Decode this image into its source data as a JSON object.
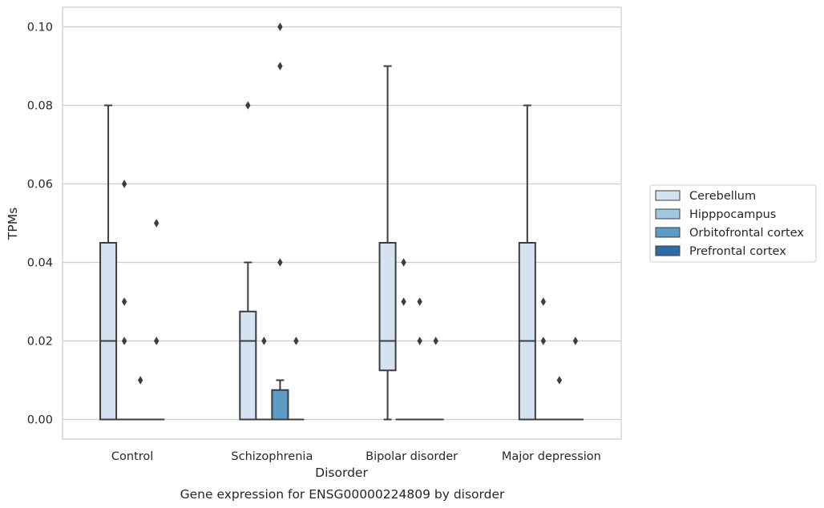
{
  "chart_data": {
    "type": "box",
    "title": "",
    "caption": "Gene expression for ENSG00000224809 by disorder",
    "xlabel": "Disorder",
    "ylabel": "TPMs",
    "ylim": [
      -0.005,
      0.105
    ],
    "yticks": [
      0.0,
      0.02,
      0.04,
      0.06,
      0.08,
      0.1
    ],
    "ytick_labels": [
      "0.00",
      "0.02",
      "0.04",
      "0.06",
      "0.08",
      "0.10"
    ],
    "grid": "horizontal",
    "legend_position": "right",
    "categories": [
      "Control",
      "Schizophrenia",
      "Bipolar disorder",
      "Major depression"
    ],
    "series": [
      {
        "name": "Cerebellum",
        "color": "#d4e2f1",
        "boxes": [
          {
            "whisker_low": 0.0,
            "q1": 0.0,
            "median": 0.02,
            "q3": 0.045,
            "whisker_high": 0.08,
            "outliers": []
          },
          {
            "whisker_low": 0.0,
            "q1": 0.0,
            "median": 0.02,
            "q3": 0.0275,
            "whisker_high": 0.04,
            "outliers": [
              0.08
            ]
          },
          {
            "whisker_low": 0.0,
            "q1": 0.0125,
            "median": 0.02,
            "q3": 0.045,
            "whisker_high": 0.09,
            "outliers": []
          },
          {
            "whisker_low": 0.0,
            "q1": 0.0,
            "median": 0.02,
            "q3": 0.045,
            "whisker_high": 0.08,
            "outliers": []
          }
        ]
      },
      {
        "name": "Hipppocampus",
        "color": "#a3c6df",
        "boxes": [
          {
            "whisker_low": 0.0,
            "q1": 0.0,
            "median": 0.0,
            "q3": 0.0,
            "whisker_high": 0.0,
            "outliers": [
              0.02,
              0.03,
              0.06
            ]
          },
          {
            "whisker_low": 0.0,
            "q1": 0.0,
            "median": 0.0,
            "q3": 0.0,
            "whisker_high": 0.0,
            "outliers": [
              0.02
            ]
          },
          {
            "whisker_low": 0.0,
            "q1": 0.0,
            "median": 0.0,
            "q3": 0.0,
            "whisker_high": 0.0,
            "outliers": [
              0.03,
              0.04
            ]
          },
          {
            "whisker_low": 0.0,
            "q1": 0.0,
            "median": 0.0,
            "q3": 0.0,
            "whisker_high": 0.0,
            "outliers": [
              0.02,
              0.03
            ]
          }
        ]
      },
      {
        "name": "Orbitofrontal cortex",
        "color": "#5b9bc6",
        "boxes": [
          {
            "whisker_low": 0.0,
            "q1": 0.0,
            "median": 0.0,
            "q3": 0.0,
            "whisker_high": 0.0,
            "outliers": [
              0.01
            ]
          },
          {
            "whisker_low": 0.0,
            "q1": 0.0,
            "median": 0.0,
            "q3": 0.0075,
            "whisker_high": 0.01,
            "outliers": [
              0.04,
              0.09,
              0.1
            ]
          },
          {
            "whisker_low": 0.0,
            "q1": 0.0,
            "median": 0.0,
            "q3": 0.0,
            "whisker_high": 0.0,
            "outliers": [
              0.02,
              0.03
            ]
          },
          {
            "whisker_low": 0.0,
            "q1": 0.0,
            "median": 0.0,
            "q3": 0.0,
            "whisker_high": 0.0,
            "outliers": [
              0.01
            ]
          }
        ]
      },
      {
        "name": "Prefrontal cortex",
        "color": "#2e6ca8",
        "boxes": [
          {
            "whisker_low": 0.0,
            "q1": 0.0,
            "median": 0.0,
            "q3": 0.0,
            "whisker_high": 0.0,
            "outliers": [
              0.02,
              0.05
            ]
          },
          {
            "whisker_low": 0.0,
            "q1": 0.0,
            "median": 0.0,
            "q3": 0.0,
            "whisker_high": 0.0,
            "outliers": [
              0.02
            ]
          },
          {
            "whisker_low": 0.0,
            "q1": 0.0,
            "median": 0.0,
            "q3": 0.0,
            "whisker_high": 0.0,
            "outliers": [
              0.02
            ]
          },
          {
            "whisker_low": 0.0,
            "q1": 0.0,
            "median": 0.0,
            "q3": 0.0,
            "whisker_high": 0.0,
            "outliers": [
              0.02
            ]
          }
        ]
      }
    ]
  }
}
